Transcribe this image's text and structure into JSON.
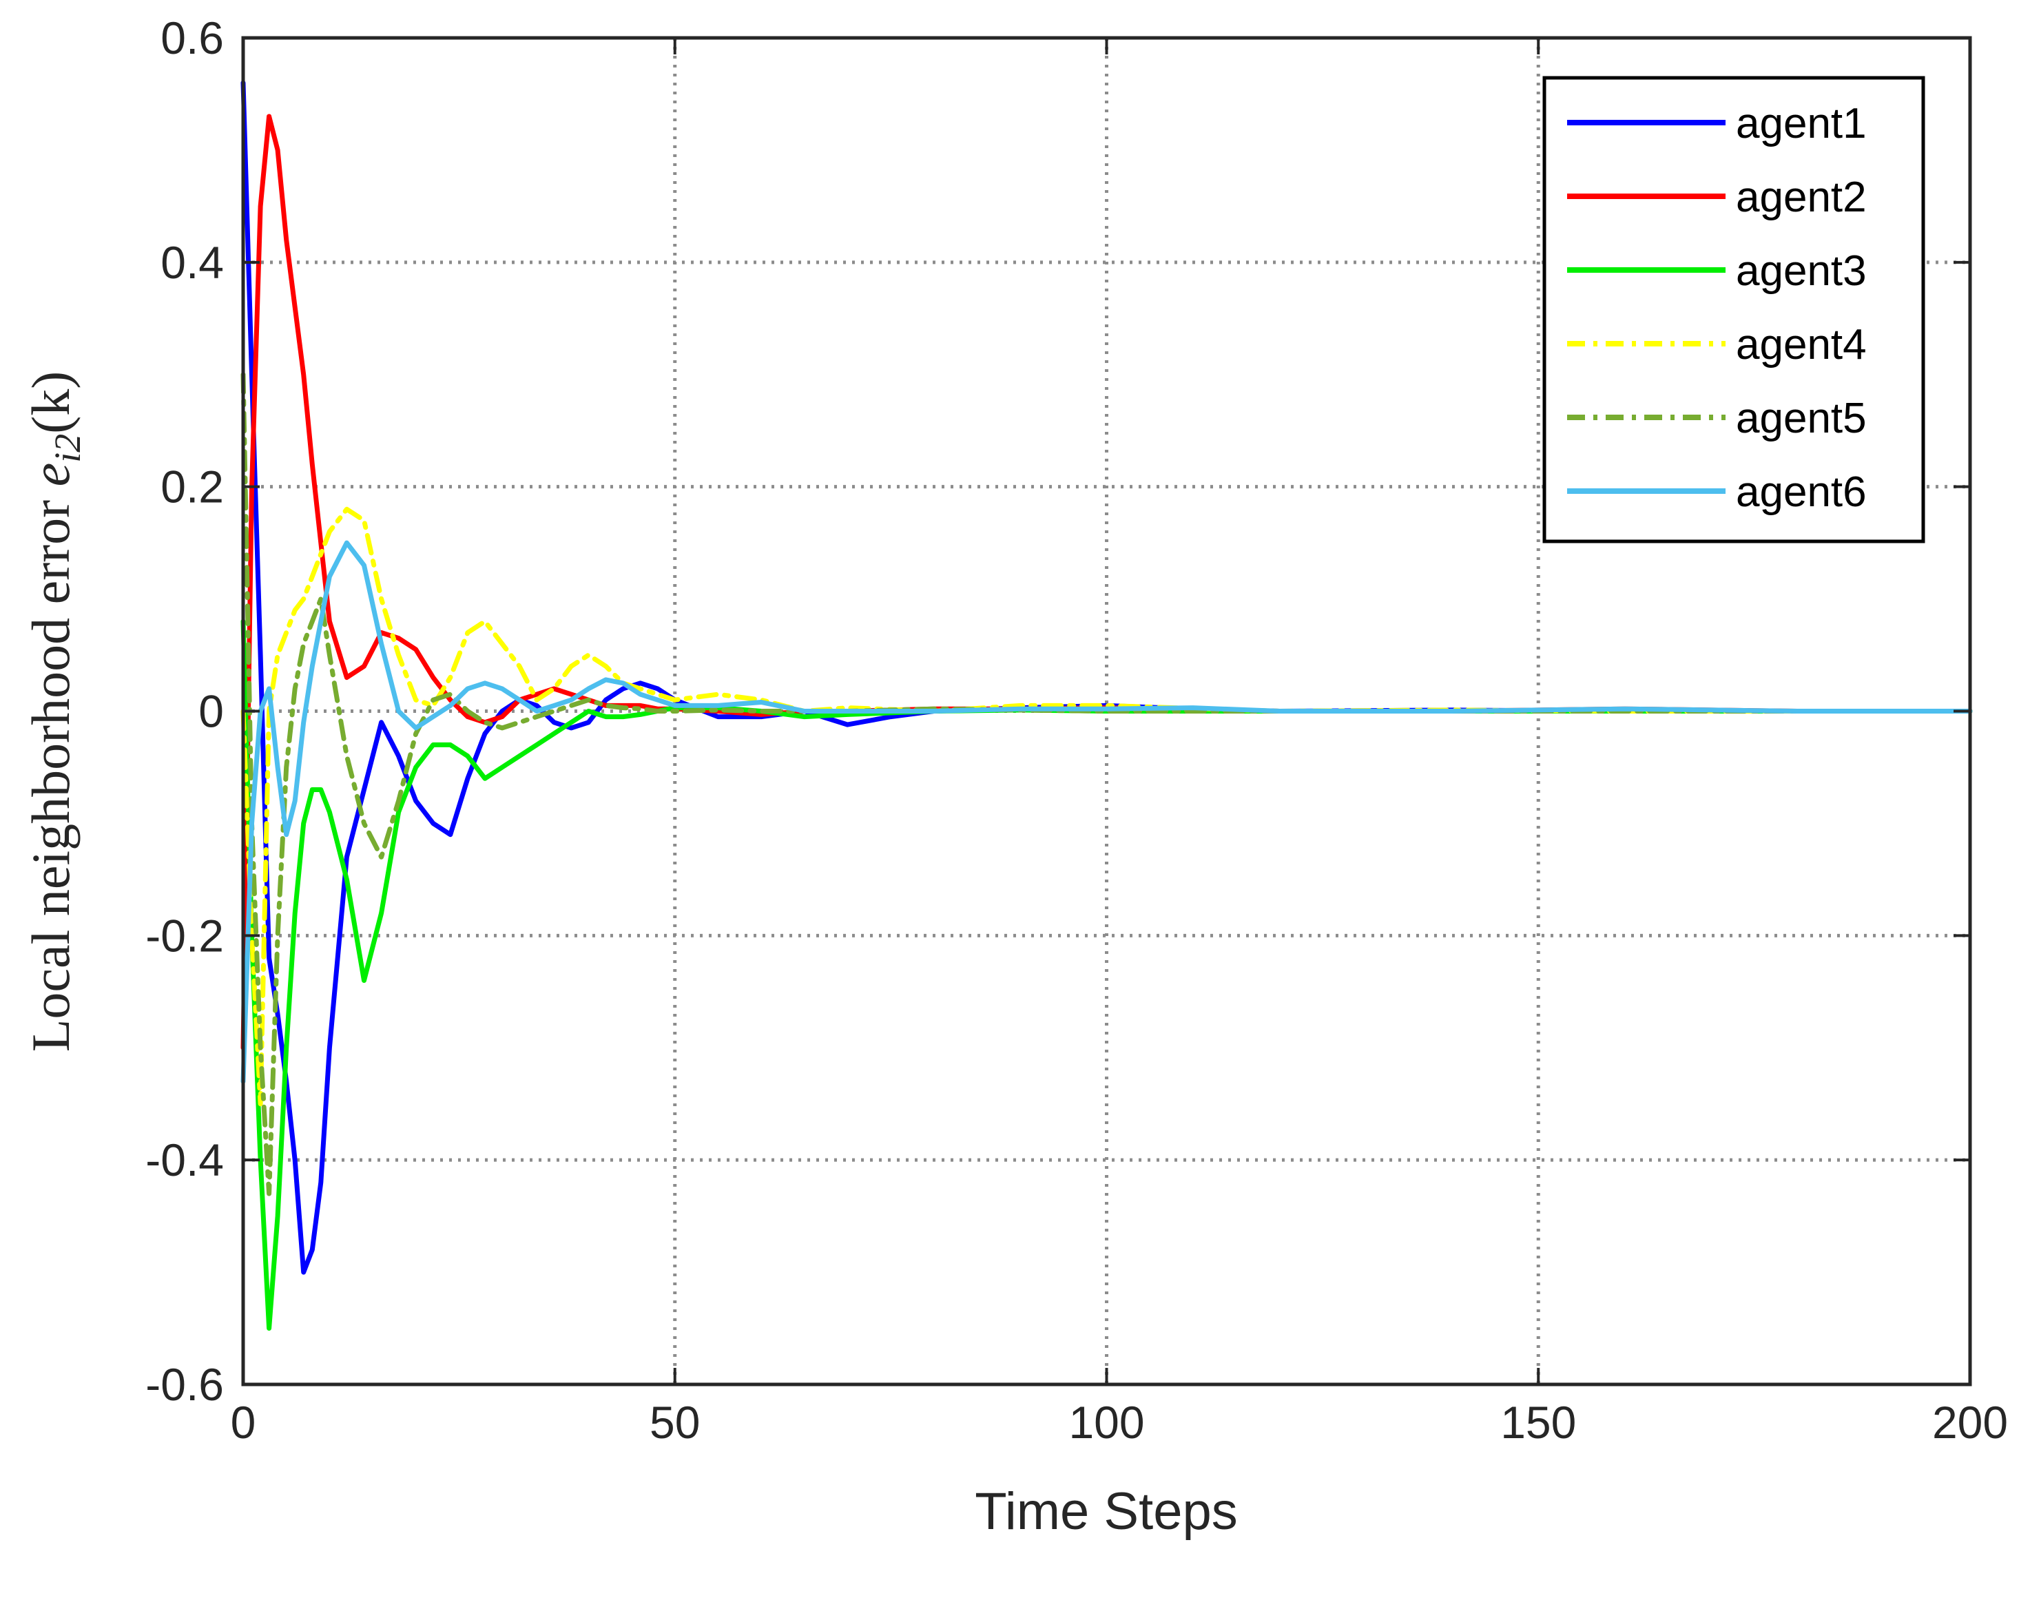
{
  "chart_data": {
    "type": "line",
    "title": "",
    "xlabel": "Time Steps",
    "ylabel": {
      "prefix": "Local neighborhood error ",
      "symbol": "e",
      "subscript": "i2",
      "argument": "(k)"
    },
    "xlim": [
      0,
      200
    ],
    "ylim": [
      -0.6,
      0.6
    ],
    "xticks": [
      0,
      50,
      100,
      150,
      200
    ],
    "yticks": [
      -0.6,
      -0.4,
      -0.2,
      0,
      0.2,
      0.4,
      0.6
    ],
    "xtick_labels": [
      "0",
      "50",
      "100",
      "150",
      "200"
    ],
    "ytick_labels": [
      "-0.6",
      "-0.4",
      "-0.2",
      "0",
      "0.2",
      "0.4",
      "0.6"
    ],
    "grid": true,
    "legend_position": "top-right",
    "series": [
      {
        "name": "agent1",
        "color": "#0000FF",
        "style": "solid",
        "x": [
          0,
          1,
          2,
          3,
          4,
          5,
          6,
          7,
          8,
          9,
          10,
          12,
          14,
          16,
          18,
          20,
          22,
          24,
          26,
          28,
          30,
          32,
          34,
          36,
          38,
          40,
          42,
          44,
          46,
          48,
          50,
          55,
          60,
          65,
          70,
          75,
          80,
          90,
          100,
          110,
          120,
          140,
          160,
          180,
          200
        ],
        "y": [
          0.56,
          0.3,
          0.05,
          -0.22,
          -0.27,
          -0.33,
          -0.4,
          -0.5,
          -0.48,
          -0.42,
          -0.3,
          -0.13,
          -0.07,
          -0.01,
          -0.04,
          -0.08,
          -0.1,
          -0.11,
          -0.06,
          -0.02,
          0.0,
          0.01,
          0.005,
          -0.01,
          -0.015,
          -0.01,
          0.01,
          0.02,
          0.025,
          0.02,
          0.01,
          -0.005,
          -0.005,
          0.0,
          -0.012,
          -0.005,
          0.0,
          0.003,
          0.005,
          0.002,
          0.0,
          0.001,
          0.0,
          0.0,
          0.0
        ]
      },
      {
        "name": "agent2",
        "color": "#FF0000",
        "style": "solid",
        "x": [
          0,
          1,
          2,
          3,
          4,
          5,
          6,
          7,
          8,
          9,
          10,
          12,
          14,
          16,
          18,
          20,
          22,
          24,
          26,
          28,
          30,
          32,
          34,
          36,
          38,
          40,
          42,
          44,
          46,
          48,
          50,
          55,
          60,
          65,
          70,
          80,
          90,
          100,
          120,
          140,
          160,
          180,
          200
        ],
        "y": [
          -0.3,
          0.2,
          0.45,
          0.53,
          0.5,
          0.42,
          0.36,
          0.3,
          0.22,
          0.15,
          0.08,
          0.03,
          0.04,
          0.07,
          0.065,
          0.055,
          0.03,
          0.01,
          -0.005,
          -0.01,
          -0.005,
          0.01,
          0.015,
          0.02,
          0.015,
          0.01,
          0.005,
          0.005,
          0.005,
          0.002,
          0.002,
          0.0,
          -0.003,
          0.0,
          0.0,
          0.002,
          0.002,
          0.003,
          0.0,
          0.0,
          0.002,
          0.0,
          0.0
        ]
      },
      {
        "name": "agent3",
        "color": "#00EE00",
        "style": "solid",
        "x": [
          0,
          1,
          2,
          3,
          4,
          5,
          6,
          7,
          8,
          9,
          10,
          12,
          14,
          16,
          18,
          20,
          22,
          24,
          26,
          28,
          30,
          32,
          34,
          36,
          38,
          40,
          42,
          44,
          46,
          48,
          50,
          55,
          60,
          65,
          70,
          80,
          90,
          100,
          120,
          140,
          160,
          180,
          200
        ],
        "y": [
          0.08,
          -0.2,
          -0.4,
          -0.55,
          -0.45,
          -0.3,
          -0.18,
          -0.1,
          -0.07,
          -0.07,
          -0.09,
          -0.15,
          -0.24,
          -0.18,
          -0.09,
          -0.05,
          -0.03,
          -0.03,
          -0.04,
          -0.06,
          -0.05,
          -0.04,
          -0.03,
          -0.02,
          -0.01,
          0.0,
          -0.005,
          -0.005,
          -0.003,
          0.0,
          0.003,
          0.003,
          0.0,
          -0.005,
          -0.003,
          0.0,
          0.001,
          0.0,
          0.0,
          0.0,
          0.0,
          0.0,
          0.0
        ]
      },
      {
        "name": "agent4",
        "color": "#FFFF00",
        "style": "dashdot",
        "x": [
          0,
          1,
          2,
          3,
          4,
          5,
          6,
          7,
          8,
          9,
          10,
          12,
          14,
          16,
          18,
          20,
          22,
          24,
          26,
          28,
          30,
          32,
          34,
          36,
          38,
          40,
          42,
          44,
          46,
          48,
          50,
          55,
          60,
          65,
          70,
          80,
          90,
          100,
          120,
          140,
          160,
          180,
          200
        ],
        "y": [
          0.0,
          -0.2,
          -0.35,
          0.0,
          0.05,
          0.07,
          0.09,
          0.1,
          0.12,
          0.14,
          0.16,
          0.18,
          0.17,
          0.1,
          0.05,
          0.01,
          0.005,
          0.03,
          0.07,
          0.08,
          0.06,
          0.04,
          0.01,
          0.02,
          0.04,
          0.05,
          0.04,
          0.025,
          0.02,
          0.015,
          0.01,
          0.015,
          0.01,
          0.0,
          0.003,
          0.0,
          0.005,
          0.005,
          0.0,
          0.001,
          0.0,
          0.0,
          0.0
        ]
      },
      {
        "name": "agent5",
        "color": "#77AC30",
        "style": "dashdot",
        "x": [
          0,
          1,
          2,
          3,
          4,
          5,
          6,
          7,
          8,
          9,
          10,
          12,
          14,
          16,
          18,
          20,
          22,
          24,
          26,
          28,
          30,
          32,
          34,
          36,
          38,
          40,
          42,
          44,
          46,
          48,
          50,
          55,
          60,
          65,
          70,
          80,
          90,
          100,
          120,
          140,
          160,
          180,
          200
        ],
        "y": [
          0.3,
          -0.1,
          -0.3,
          -0.43,
          -0.2,
          -0.05,
          0.02,
          0.06,
          0.08,
          0.1,
          0.05,
          -0.04,
          -0.1,
          -0.13,
          -0.08,
          -0.02,
          0.01,
          0.015,
          0.0,
          -0.01,
          -0.015,
          -0.01,
          -0.005,
          0.0,
          0.005,
          0.01,
          0.005,
          0.003,
          0.002,
          0.0,
          0.0,
          0.001,
          0.0,
          0.0,
          0.0,
          0.002,
          0.001,
          0.0,
          0.0,
          0.0,
          0.0,
          0.0,
          0.0
        ]
      },
      {
        "name": "agent6",
        "color": "#4DBEEE",
        "style": "solid",
        "x": [
          0,
          1,
          2,
          3,
          4,
          5,
          6,
          7,
          8,
          9,
          10,
          12,
          14,
          16,
          18,
          20,
          22,
          24,
          26,
          28,
          30,
          32,
          34,
          36,
          38,
          40,
          42,
          44,
          46,
          48,
          50,
          55,
          60,
          65,
          70,
          80,
          90,
          100,
          110,
          120,
          140,
          160,
          180,
          200
        ],
        "y": [
          -0.33,
          -0.1,
          0.0,
          0.02,
          -0.05,
          -0.11,
          -0.08,
          -0.01,
          0.04,
          0.08,
          0.12,
          0.15,
          0.13,
          0.06,
          0.0,
          -0.015,
          -0.005,
          0.005,
          0.02,
          0.025,
          0.02,
          0.01,
          0.0,
          0.005,
          0.01,
          0.02,
          0.028,
          0.025,
          0.015,
          0.01,
          0.005,
          0.005,
          0.008,
          0.0,
          0.0,
          0.0,
          0.002,
          0.002,
          0.003,
          0.0,
          0.0,
          0.002,
          0.0,
          0.0
        ]
      }
    ]
  }
}
